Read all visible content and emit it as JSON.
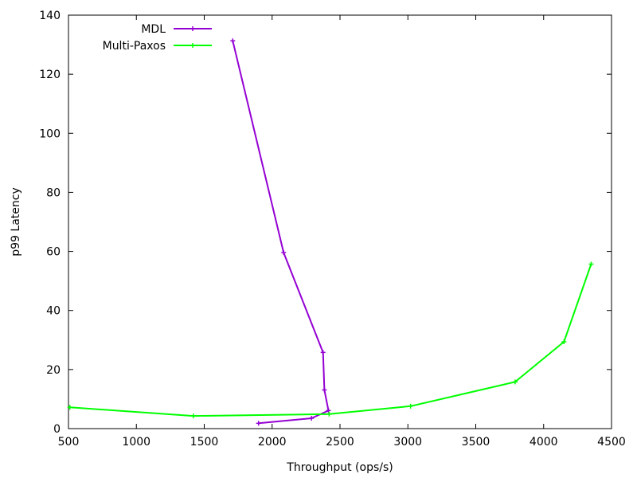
{
  "chart_data": {
    "type": "line",
    "title": "",
    "xlabel": "Throughput (ops/s)",
    "ylabel": "p99 Latency",
    "xlim": [
      500,
      4500
    ],
    "ylim": [
      0,
      140
    ],
    "x_ticks": [
      500,
      1000,
      1500,
      2000,
      2500,
      3000,
      3500,
      4000,
      4500
    ],
    "y_ticks": [
      0,
      20,
      40,
      60,
      80,
      100,
      120,
      140
    ],
    "grid": false,
    "legend_position": "top-left",
    "series": [
      {
        "name": "MDL",
        "color": "#9400d3",
        "points": [
          [
            1900,
            1.8
          ],
          [
            2290,
            3.5
          ],
          [
            2415,
            6.1
          ],
          [
            2385,
            13.1
          ],
          [
            2375,
            25.8
          ],
          [
            2085,
            59.6
          ],
          [
            1710,
            131.3
          ]
        ]
      },
      {
        "name": "Multi-Paxos",
        "color": "#00ff00",
        "points": [
          [
            510,
            7.2
          ],
          [
            1420,
            4.3
          ],
          [
            2420,
            4.9
          ],
          [
            3020,
            7.6
          ],
          [
            3790,
            15.8
          ],
          [
            4150,
            29.4
          ],
          [
            4350,
            55.7
          ]
        ]
      }
    ]
  }
}
